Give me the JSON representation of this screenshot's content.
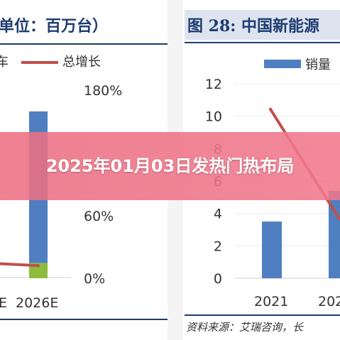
{
  "banner": {
    "title": "2025年01月03日发热门热布局"
  },
  "chart_data": [
    {
      "type": "bar",
      "title": "单位：百万台）",
      "legend": [
        "车",
        "总增长"
      ],
      "legend_placement": "top",
      "categories": [
        "E",
        "2026E"
      ],
      "series": [
        {
          "name": "车",
          "values": [
            null,
            10.0
          ]
        },
        {
          "name": "",
          "values": [
            null,
            1.0
          ]
        },
        {
          "name": "总增长",
          "values": [
            0.14,
            0.12
          ]
        }
      ],
      "y2_ticks": [
        "0%",
        "60%",
        "180%"
      ],
      "y2lim": [
        0,
        1.8
      ],
      "colors": {
        "bar": "#4f7fc0",
        "bar_top": "#8dbb3c",
        "line": "#c0504d",
        "title_bg": "#ffffff"
      }
    },
    {
      "type": "bar",
      "title": "图 28: 中国新能源",
      "legend": [
        "销量"
      ],
      "legend_placement": "top",
      "categories": [
        "2021",
        "202"
      ],
      "series": [
        {
          "name": "销量",
          "values": [
            3.5,
            5.4
          ]
        },
        {
          "name": "",
          "values": [
            10.5,
            3.6
          ]
        }
      ],
      "y_ticks": [
        "0",
        "2",
        "4",
        "6",
        "8",
        "10",
        "12"
      ],
      "ylim": [
        0,
        12
      ],
      "source": "资料来源：艾瑞咨询，长",
      "colors": {
        "bar": "#4f7fc0",
        "line": "#c0504d",
        "title_bg": "#dde4ef"
      }
    }
  ]
}
